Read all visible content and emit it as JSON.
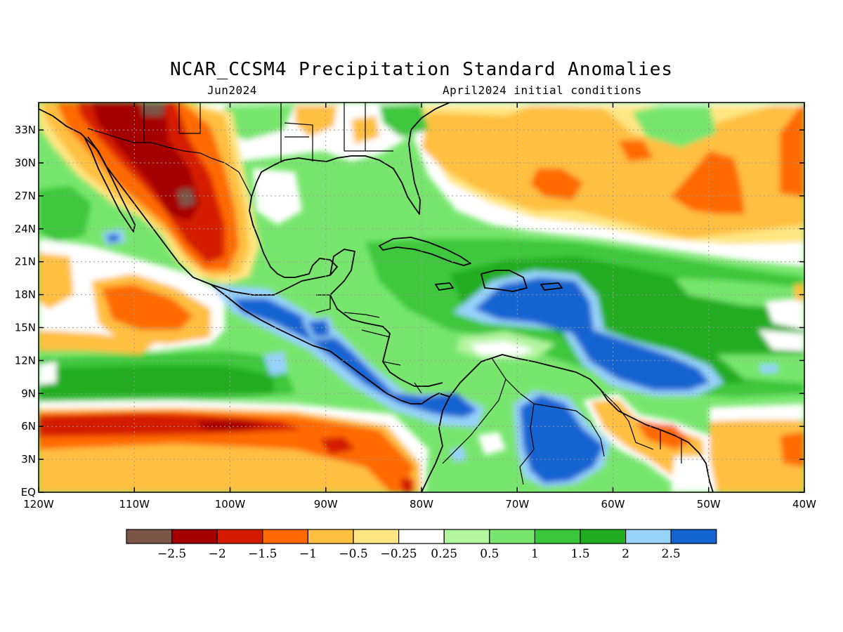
{
  "header": {
    "title": "NCAR_CCSM4 Precipitation Standard Anomalies",
    "subtitle_left": "Jun2024",
    "subtitle_right": "April2024 initial conditions"
  },
  "axes": {
    "lon_ticks": [
      "120W",
      "110W",
      "100W",
      "90W",
      "80W",
      "70W",
      "60W",
      "50W",
      "40W"
    ],
    "lon_values": [
      -120,
      -110,
      -100,
      -90,
      -80,
      -70,
      -60,
      -50,
      -40
    ],
    "lat_ticks": [
      "EQ",
      "3N",
      "6N",
      "9N",
      "12N",
      "15N",
      "18N",
      "21N",
      "24N",
      "27N",
      "30N",
      "33N"
    ],
    "lat_values": [
      0,
      3,
      6,
      9,
      12,
      15,
      18,
      21,
      24,
      27,
      30,
      33
    ],
    "lon_range": [
      -120,
      -40
    ],
    "lat_range": [
      0,
      35.5
    ]
  },
  "legend": {
    "labels": [
      "−2.5",
      "−2",
      "−1.5",
      "−1",
      "−0.5",
      "−0.25",
      "0.25",
      "0.5",
      "1",
      "1.5",
      "2",
      "2.5"
    ],
    "colors": [
      "#7a5548",
      "#a50000",
      "#d61a00",
      "#ff6a00",
      "#ffbf40",
      "#ffe680",
      "#ffffff",
      "#b4f5a0",
      "#78e66e",
      "#3cc83c",
      "#21ad21",
      "#96d2fa",
      "#1464d2"
    ]
  },
  "colors": {
    "base": "#78e66e",
    "frame": "#000000",
    "grid": "#9a9a9a"
  }
}
